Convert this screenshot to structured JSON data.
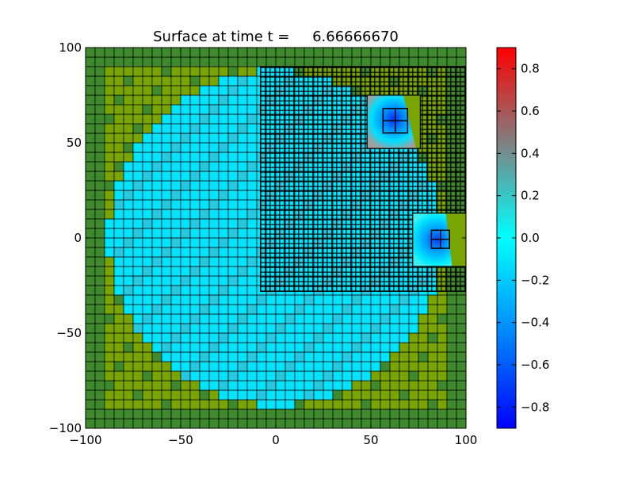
{
  "chart_data": {
    "type": "heatmap",
    "title": "Surface at time t =     6.66666670",
    "xlabel": "",
    "ylabel": "",
    "xlim": [
      -100,
      100
    ],
    "ylim": [
      -100,
      100
    ],
    "x_ticks": [
      "−100",
      "−50",
      "0",
      "50",
      "100"
    ],
    "x_tick_values": [
      -100,
      -50,
      0,
      50,
      100
    ],
    "y_ticks": [
      "100",
      "50",
      "0",
      "−50",
      "−100"
    ],
    "y_tick_values": [
      100,
      50,
      0,
      -50,
      -100
    ],
    "grid": "cell boundaries drawn in black",
    "land_color": "#7aa500",
    "land_color_dark": "#3f8a2e",
    "water_color": "#00e5ff",
    "water_color_variant": "#26c9e0",
    "island": {
      "shape": "circle",
      "center": [
        0,
        0
      ],
      "radius": 88,
      "surface_value": 0.0
    },
    "refined_region": {
      "x": [
        -8,
        100
      ],
      "y": [
        -28,
        90
      ],
      "level": 2
    },
    "refined_patches": [
      {
        "x": [
          48,
          76
        ],
        "y": [
          47,
          75
        ],
        "min_value": -0.8,
        "max_value": 0.3,
        "level": 3
      },
      {
        "x": [
          72,
          100
        ],
        "y": [
          -15,
          13
        ],
        "min_value": -0.8,
        "max_value": 0.2,
        "level": 3
      }
    ],
    "colorbar": {
      "min": -0.9,
      "max": 0.9,
      "colormap": "blue-cyan-gray-red",
      "ticks": [
        "0.8",
        "0.6",
        "0.4",
        "0.2",
        "0.0",
        "−0.2",
        "−0.4",
        "−0.6",
        "−0.8"
      ],
      "tick_values": [
        0.8,
        0.6,
        0.4,
        0.2,
        0.0,
        -0.2,
        -0.4,
        -0.6,
        -0.8
      ]
    }
  }
}
